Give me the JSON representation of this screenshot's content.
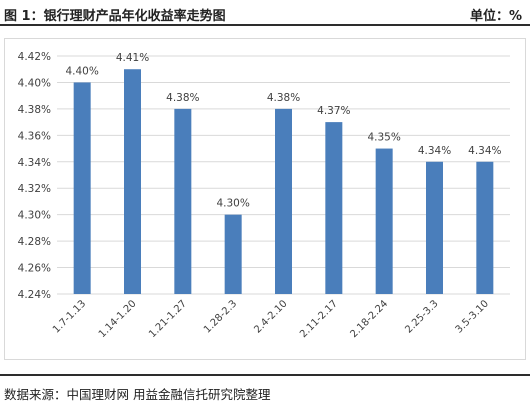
{
  "header": {
    "title": "图 1：银行理财产品年化收益率走势图",
    "unit": "单位：%"
  },
  "footer": {
    "source": "数据来源：中国理财网   用益金融信托研究院整理"
  },
  "colors": {
    "bar": "#4a7ebb",
    "grid": "#d9d9d9",
    "text": "#404040"
  },
  "chart_data": {
    "type": "bar",
    "categories": [
      "1.7-1.13",
      "1.14-1.20",
      "1.21-1.27",
      "1.28-2.3",
      "2.4-2.10",
      "2.11-2.17",
      "2.18-2.24",
      "2.25-3.3",
      "3.5-3.10"
    ],
    "values": [
      4.4,
      4.41,
      4.38,
      4.3,
      4.38,
      4.37,
      4.35,
      4.34,
      4.34
    ],
    "data_labels": [
      "4.40%",
      "4.41%",
      "4.38%",
      "4.30%",
      "4.38%",
      "4.37%",
      "4.35%",
      "4.34%",
      "4.34%"
    ],
    "ylim": [
      4.24,
      4.42
    ],
    "yticks": [
      4.24,
      4.26,
      4.28,
      4.3,
      4.32,
      4.34,
      4.36,
      4.38,
      4.4,
      4.42
    ],
    "ytick_labels": [
      "4.24%",
      "4.26%",
      "4.28%",
      "4.30%",
      "4.32%",
      "4.34%",
      "4.36%",
      "4.38%",
      "4.40%",
      "4.42%"
    ],
    "grid": true,
    "legend": "none"
  }
}
